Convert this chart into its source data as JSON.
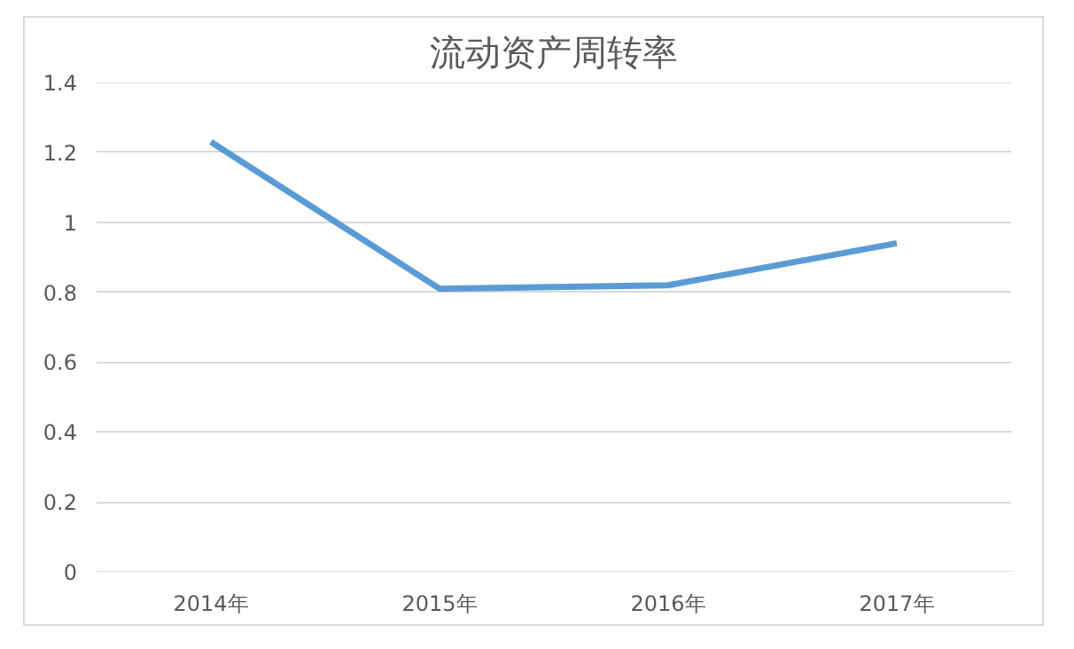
{
  "chart_data": {
    "type": "line",
    "title": "流动资产周转率",
    "categories": [
      "2014年",
      "2015年",
      "2016年",
      "2017年"
    ],
    "series": [
      {
        "color": "#5b9bd5",
        "values": [
          1.23,
          0.81,
          0.82,
          0.94
        ]
      }
    ],
    "ylim": [
      0,
      1.4
    ],
    "yticks": [
      0,
      0.2,
      0.4,
      0.6,
      0.8,
      1,
      1.2,
      1.4
    ],
    "grid": "y",
    "marker": "none",
    "line_style": "solid"
  }
}
